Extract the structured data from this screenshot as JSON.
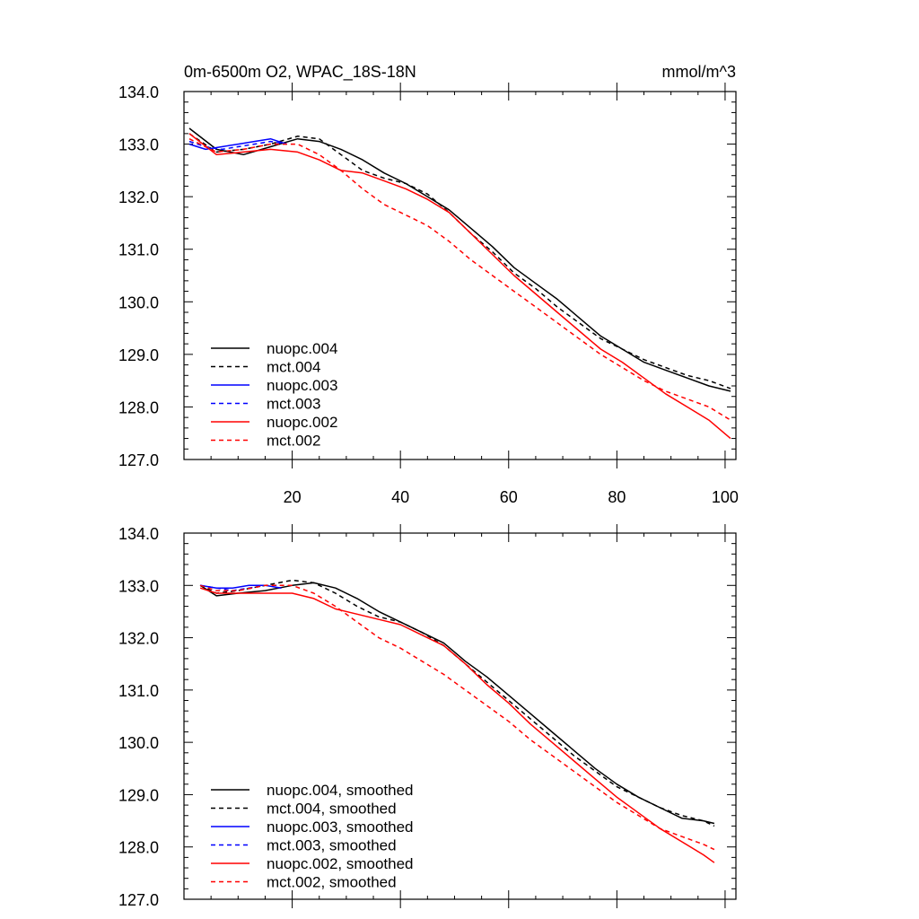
{
  "figure": {
    "title_left": "0m-6500m O2, WPAC_18S-18N",
    "title_right": "mmol/m^3"
  },
  "chart_data": [
    {
      "type": "line",
      "panel": "top",
      "title": "0m-6500m O2, WPAC_18S-18N",
      "units": "mmol/m^3",
      "xlabel": "",
      "ylabel": "",
      "xlim": [
        0,
        102
      ],
      "ylim": [
        127.0,
        134.0
      ],
      "y_ticks": [
        "127.0",
        "128.0",
        "129.0",
        "130.0",
        "131.0",
        "132.0",
        "133.0",
        "134.0"
      ],
      "x_ticks": [
        "20",
        "40",
        "60",
        "80",
        "100"
      ],
      "legend_position": "bottom-left",
      "series": [
        {
          "name": "nuopc.004",
          "color": "#000000",
          "dash": "solid",
          "x": [
            1,
            6,
            11,
            16,
            21,
            25,
            29,
            33,
            37,
            41,
            45,
            49,
            53,
            57,
            61,
            65,
            69,
            73,
            77,
            81,
            85,
            89,
            93,
            97,
            101
          ],
          "y": [
            133.3,
            132.9,
            132.8,
            132.95,
            133.1,
            133.05,
            132.9,
            132.7,
            132.45,
            132.25,
            132.0,
            131.75,
            131.4,
            131.05,
            130.65,
            130.35,
            130.05,
            129.7,
            129.35,
            129.1,
            128.85,
            128.7,
            128.55,
            128.4,
            128.3
          ]
        },
        {
          "name": "mct.004",
          "color": "#000000",
          "dash": "dashed",
          "x": [
            1,
            6,
            11,
            16,
            21,
            25,
            29,
            33,
            37,
            41,
            45,
            49,
            53,
            57,
            61,
            65,
            69,
            73,
            77,
            81,
            85,
            89,
            93,
            97,
            101
          ],
          "y": [
            133.2,
            132.85,
            132.9,
            133.0,
            133.15,
            133.1,
            132.8,
            132.5,
            132.35,
            132.25,
            132.05,
            131.7,
            131.3,
            130.95,
            130.55,
            130.25,
            129.9,
            129.6,
            129.3,
            129.1,
            128.9,
            128.75,
            128.6,
            128.5,
            128.35
          ]
        },
        {
          "name": "nuopc.003",
          "color": "#0000ff",
          "dash": "solid",
          "x": [
            1,
            4,
            7,
            10,
            13,
            16,
            19
          ],
          "y": [
            133.0,
            132.9,
            132.95,
            133.0,
            133.05,
            133.1,
            133.0
          ]
        },
        {
          "name": "mct.003",
          "color": "#0000ff",
          "dash": "dashed",
          "x": [
            1,
            4,
            7,
            10,
            13,
            16,
            19
          ],
          "y": [
            133.05,
            132.95,
            132.9,
            132.95,
            133.0,
            133.05,
            133.0
          ]
        },
        {
          "name": "nuopc.002",
          "color": "#ff0000",
          "dash": "solid",
          "x": [
            1,
            6,
            11,
            16,
            21,
            25,
            29,
            33,
            37,
            41,
            45,
            49,
            53,
            57,
            61,
            65,
            69,
            73,
            77,
            81,
            85,
            89,
            93,
            97,
            101
          ],
          "y": [
            133.2,
            132.8,
            132.85,
            132.9,
            132.85,
            132.7,
            132.5,
            132.45,
            132.3,
            132.15,
            131.95,
            131.7,
            131.3,
            130.9,
            130.5,
            130.15,
            129.8,
            129.45,
            129.1,
            128.85,
            128.55,
            128.25,
            128.0,
            127.75,
            127.4
          ]
        },
        {
          "name": "mct.002",
          "color": "#ff0000",
          "dash": "dashed",
          "x": [
            1,
            6,
            11,
            16,
            21,
            25,
            29,
            33,
            37,
            41,
            45,
            49,
            53,
            57,
            61,
            65,
            69,
            73,
            77,
            81,
            85,
            89,
            93,
            97,
            101
          ],
          "y": [
            133.1,
            132.85,
            132.9,
            133.0,
            133.0,
            132.8,
            132.5,
            132.15,
            131.85,
            131.65,
            131.45,
            131.15,
            130.8,
            130.5,
            130.2,
            129.9,
            129.6,
            129.3,
            129.0,
            128.75,
            128.5,
            128.3,
            128.15,
            128.0,
            127.75
          ]
        }
      ]
    },
    {
      "type": "line",
      "panel": "bottom",
      "title": "",
      "xlabel": "",
      "ylabel": "",
      "xlim": [
        0,
        102
      ],
      "ylim": [
        127.0,
        134.0
      ],
      "y_ticks": [
        "127.0",
        "128.0",
        "129.0",
        "130.0",
        "131.0",
        "132.0",
        "133.0",
        "134.0"
      ],
      "x_ticks": [],
      "legend_position": "bottom-left",
      "series": [
        {
          "name": "nuopc.004, smoothed",
          "color": "#000000",
          "dash": "solid",
          "x": [
            3,
            6,
            10,
            15,
            20,
            24,
            28,
            32,
            36,
            40,
            44,
            48,
            52,
            56,
            60,
            64,
            68,
            72,
            76,
            80,
            84,
            88,
            92,
            96,
            98
          ],
          "y": [
            133.0,
            132.8,
            132.85,
            132.9,
            133.0,
            133.05,
            132.95,
            132.75,
            132.5,
            132.3,
            132.1,
            131.9,
            131.55,
            131.25,
            130.9,
            130.55,
            130.2,
            129.85,
            129.5,
            129.2,
            128.95,
            128.75,
            128.55,
            128.5,
            128.45
          ]
        },
        {
          "name": "mct.004, smoothed",
          "color": "#000000",
          "dash": "dashed",
          "x": [
            3,
            6,
            10,
            15,
            20,
            24,
            28,
            32,
            36,
            40,
            44,
            48,
            52,
            56,
            60,
            64,
            68,
            72,
            76,
            80,
            84,
            88,
            92,
            96,
            98
          ],
          "y": [
            133.0,
            132.85,
            132.9,
            133.0,
            133.1,
            133.05,
            132.85,
            132.6,
            132.4,
            132.3,
            132.1,
            131.85,
            131.5,
            131.15,
            130.8,
            130.45,
            130.1,
            129.75,
            129.45,
            129.15,
            128.95,
            128.75,
            128.6,
            128.5,
            128.4
          ]
        },
        {
          "name": "nuopc.003, smoothed",
          "color": "#0000ff",
          "dash": "solid",
          "x": [
            3,
            6,
            9,
            12,
            15,
            18
          ],
          "y": [
            133.0,
            132.95,
            132.95,
            133.0,
            133.0,
            132.95
          ]
        },
        {
          "name": "mct.003, smoothed",
          "color": "#0000ff",
          "dash": "dashed",
          "x": [
            3,
            6,
            9,
            12,
            15,
            18
          ],
          "y": [
            133.0,
            132.95,
            132.9,
            132.95,
            133.0,
            133.0
          ]
        },
        {
          "name": "nuopc.002, smoothed",
          "color": "#ff0000",
          "dash": "solid",
          "x": [
            3,
            6,
            10,
            15,
            20,
            24,
            28,
            32,
            36,
            40,
            44,
            48,
            52,
            56,
            60,
            64,
            68,
            72,
            76,
            80,
            84,
            88,
            92,
            96,
            98
          ],
          "y": [
            132.95,
            132.85,
            132.85,
            132.85,
            132.85,
            132.75,
            132.55,
            132.45,
            132.35,
            132.25,
            132.05,
            131.85,
            131.5,
            131.1,
            130.75,
            130.35,
            130.0,
            129.65,
            129.3,
            128.95,
            128.65,
            128.35,
            128.1,
            127.85,
            127.7
          ]
        },
        {
          "name": "mct.002, smoothed",
          "color": "#ff0000",
          "dash": "dashed",
          "x": [
            3,
            6,
            10,
            15,
            20,
            24,
            28,
            32,
            36,
            40,
            44,
            48,
            52,
            56,
            60,
            64,
            68,
            72,
            76,
            80,
            84,
            88,
            92,
            96,
            98
          ],
          "y": [
            133.0,
            132.9,
            132.9,
            133.0,
            133.0,
            132.85,
            132.6,
            132.3,
            132.0,
            131.8,
            131.55,
            131.3,
            131.0,
            130.7,
            130.4,
            130.05,
            129.75,
            129.45,
            129.15,
            128.85,
            128.6,
            128.35,
            128.2,
            128.05,
            127.95
          ]
        }
      ]
    }
  ]
}
